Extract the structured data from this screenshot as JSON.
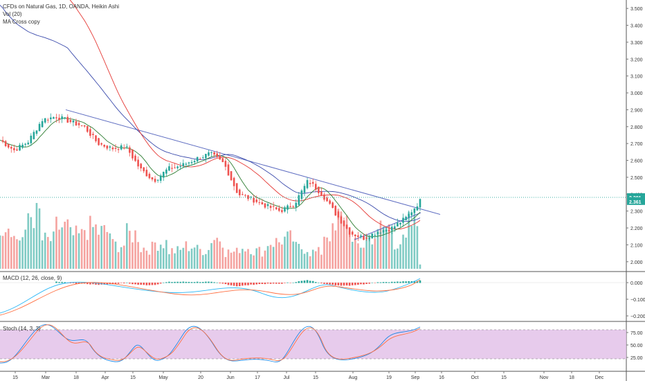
{
  "header": {
    "title": "CFDs on Natural Gas, 1D, OANDA, Heikin Ashi",
    "volume_indicator": "Vol (20)",
    "ma_indicator": "MA Cross copy"
  },
  "price_axis": {
    "ticks": [
      "3.500",
      "3.400",
      "3.300",
      "3.200",
      "3.100",
      "3.000",
      "2.900",
      "2.800",
      "2.700",
      "2.600",
      "2.500",
      "2.400",
      "2.300",
      "2.200",
      "2.100",
      "2.000"
    ],
    "last_price_badge": "2.381",
    "close_badge": "2.361"
  },
  "macd_pane": {
    "label": "MACD (12, 26, close, 9)",
    "ticks": [
      "0.000",
      "−0.100",
      "−0.200"
    ]
  },
  "stoch_pane": {
    "label": "Stoch (14, 3, 3)",
    "ticks": [
      "75.00",
      "50.00",
      "25.00"
    ]
  },
  "time_axis": {
    "ticks": [
      "15",
      "Mar",
      "18",
      "Apr",
      "15",
      "May",
      "20",
      "Jun",
      "17",
      "Jul",
      "15",
      "Aug",
      "19",
      "Sep",
      "16",
      "Oct",
      "15",
      "Nov",
      "18",
      "Dec"
    ]
  },
  "colors": {
    "up": "#26a69a",
    "down": "#ef5350",
    "vol_up": "#80cbc4",
    "vol_down": "#f5a3a0",
    "ma_fast": "#2e7d32",
    "ma_mid": "#e53935",
    "ma_slow": "#3949ab",
    "trendline": "#5c6bc0",
    "stoch_band": "#e1bee7",
    "macd_line": "#29b6f6",
    "signal_line": "#ff7043"
  },
  "chart_data": {
    "type": "candlestick",
    "title": "CFDs on Natural Gas, 1D, OANDA, Heikin Ashi",
    "ylim": [
      1.95,
      3.55
    ],
    "last_price": 2.381,
    "close": 2.361,
    "x_ticks": [
      "15",
      "Mar",
      "18",
      "Apr",
      "15",
      "May",
      "20",
      "Jun",
      "17",
      "Jul",
      "15",
      "Aug",
      "19",
      "Sep",
      "16",
      "Oct",
      "15",
      "Nov",
      "18",
      "Dec"
    ],
    "close_path": [
      {
        "x": "Feb 12",
        "y": 2.72
      },
      {
        "x": "Feb 15",
        "y": 2.66
      },
      {
        "x": "Feb 22",
        "y": 2.71
      },
      {
        "x": "Mar 1",
        "y": 2.84
      },
      {
        "x": "Mar 8",
        "y": 2.86
      },
      {
        "x": "Mar 15",
        "y": 2.83
      },
      {
        "x": "Mar 22",
        "y": 2.8
      },
      {
        "x": "Mar 29",
        "y": 2.7
      },
      {
        "x": "Apr 5",
        "y": 2.67
      },
      {
        "x": "Apr 12",
        "y": 2.68
      },
      {
        "x": "Apr 19",
        "y": 2.55
      },
      {
        "x": "Apr 24",
        "y": 2.48
      },
      {
        "x": "May 3",
        "y": 2.55
      },
      {
        "x": "May 10",
        "y": 2.57
      },
      {
        "x": "May 17",
        "y": 2.61
      },
      {
        "x": "May 24",
        "y": 2.64
      },
      {
        "x": "May 31",
        "y": 2.58
      },
      {
        "x": "Jun 7",
        "y": 2.4
      },
      {
        "x": "Jun 14",
        "y": 2.37
      },
      {
        "x": "Jun 21",
        "y": 2.33
      },
      {
        "x": "Jun 28",
        "y": 2.3
      },
      {
        "x": "Jul 5",
        "y": 2.34
      },
      {
        "x": "Jul 12",
        "y": 2.48
      },
      {
        "x": "Jul 19",
        "y": 2.4
      },
      {
        "x": "Jul 26",
        "y": 2.28
      },
      {
        "x": "Aug 2",
        "y": 2.17
      },
      {
        "x": "Aug 9",
        "y": 2.14
      },
      {
        "x": "Aug 16",
        "y": 2.18
      },
      {
        "x": "Aug 23",
        "y": 2.2
      },
      {
        "x": "Aug 30",
        "y": 2.26
      },
      {
        "x": "Sep 4",
        "y": 2.36
      }
    ],
    "volume_relative": [
      0.78,
      0.52,
      0.92,
      0.48,
      0.7,
      0.55,
      0.68,
      0.62,
      0.4,
      0.58,
      0.35,
      0.44,
      0.3,
      0.38,
      0.32,
      0.52,
      0.28,
      0.36,
      0.3,
      0.45,
      0.5,
      0.35,
      0.28,
      0.6,
      0.85,
      0.4,
      0.55,
      0.7,
      0.45,
      0.75,
      0.1
    ],
    "stoch_levels": [
      80,
      20
    ]
  }
}
